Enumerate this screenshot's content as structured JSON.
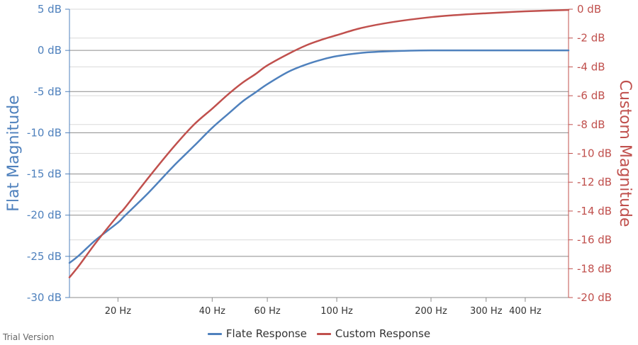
{
  "footer": {
    "trial_label": "Trial Version"
  },
  "chart_data": {
    "type": "line",
    "xscale": "log",
    "xlim": [
      14,
      550
    ],
    "x_ticks": [
      20,
      40,
      60,
      100,
      200,
      300,
      400
    ],
    "x_tick_labels": [
      "20 Hz",
      "40 Hz",
      "60 Hz",
      "100 Hz",
      "200 Hz",
      "300 Hz",
      "400 Hz"
    ],
    "y_left": {
      "label": "Flat Magnitude",
      "color": "#4f81bd",
      "lim": [
        -30,
        5
      ],
      "ticks": [
        5,
        0,
        -5,
        -10,
        -15,
        -20,
        -25,
        -30
      ],
      "tick_labels": [
        "5 dB",
        "0 dB",
        "-5 dB",
        "-10 dB",
        "-15 dB",
        "-20 dB",
        "-25 dB",
        "-30 dB"
      ]
    },
    "y_right": {
      "label": "Custom Magnitude",
      "color": "#c0504d",
      "lim": [
        -20,
        0
      ],
      "ticks": [
        0,
        -2,
        -4,
        -6,
        -8,
        -10,
        -12,
        -14,
        -16,
        -18,
        -20
      ],
      "tick_labels": [
        "0 dB",
        "-2 dB",
        "-4 dB",
        "-6 dB",
        "-8 dB",
        "-10 dB",
        "-12 dB",
        "-14 dB",
        "-16 dB",
        "-18 dB",
        "-20 dB"
      ]
    },
    "grid": true,
    "legend_position": "bottom-center",
    "series": [
      {
        "name": "Flate Response",
        "axis": "left",
        "color": "#4f81bd",
        "x": [
          14,
          15,
          17,
          20,
          21,
          25,
          30,
          35,
          40,
          45,
          50,
          55,
          60,
          70,
          80,
          90,
          100,
          120,
          150,
          200,
          300,
          400,
          550
        ],
        "y": [
          -25.8,
          -24.9,
          -23.0,
          -20.9,
          -20.1,
          -17.3,
          -14.1,
          -11.6,
          -9.4,
          -7.7,
          -6.2,
          -5.1,
          -4.1,
          -2.6,
          -1.7,
          -1.1,
          -0.7,
          -0.3,
          -0.1,
          0.0,
          0.0,
          0.0,
          0.0
        ]
      },
      {
        "name": "Custom Response",
        "axis": "right",
        "color": "#c0504d",
        "x": [
          14,
          15,
          17,
          20,
          21,
          25,
          30,
          35,
          40,
          45,
          50,
          55,
          60,
          70,
          80,
          90,
          100,
          120,
          150,
          200,
          250,
          300,
          400,
          550
        ],
        "y": [
          -18.6,
          -17.8,
          -16.2,
          -14.3,
          -13.8,
          -11.7,
          -9.6,
          -8.0,
          -6.9,
          -5.9,
          -5.1,
          -4.5,
          -3.9,
          -3.1,
          -2.5,
          -2.1,
          -1.8,
          -1.3,
          -0.9,
          -0.55,
          -0.38,
          -0.28,
          -0.15,
          -0.05
        ]
      }
    ]
  }
}
